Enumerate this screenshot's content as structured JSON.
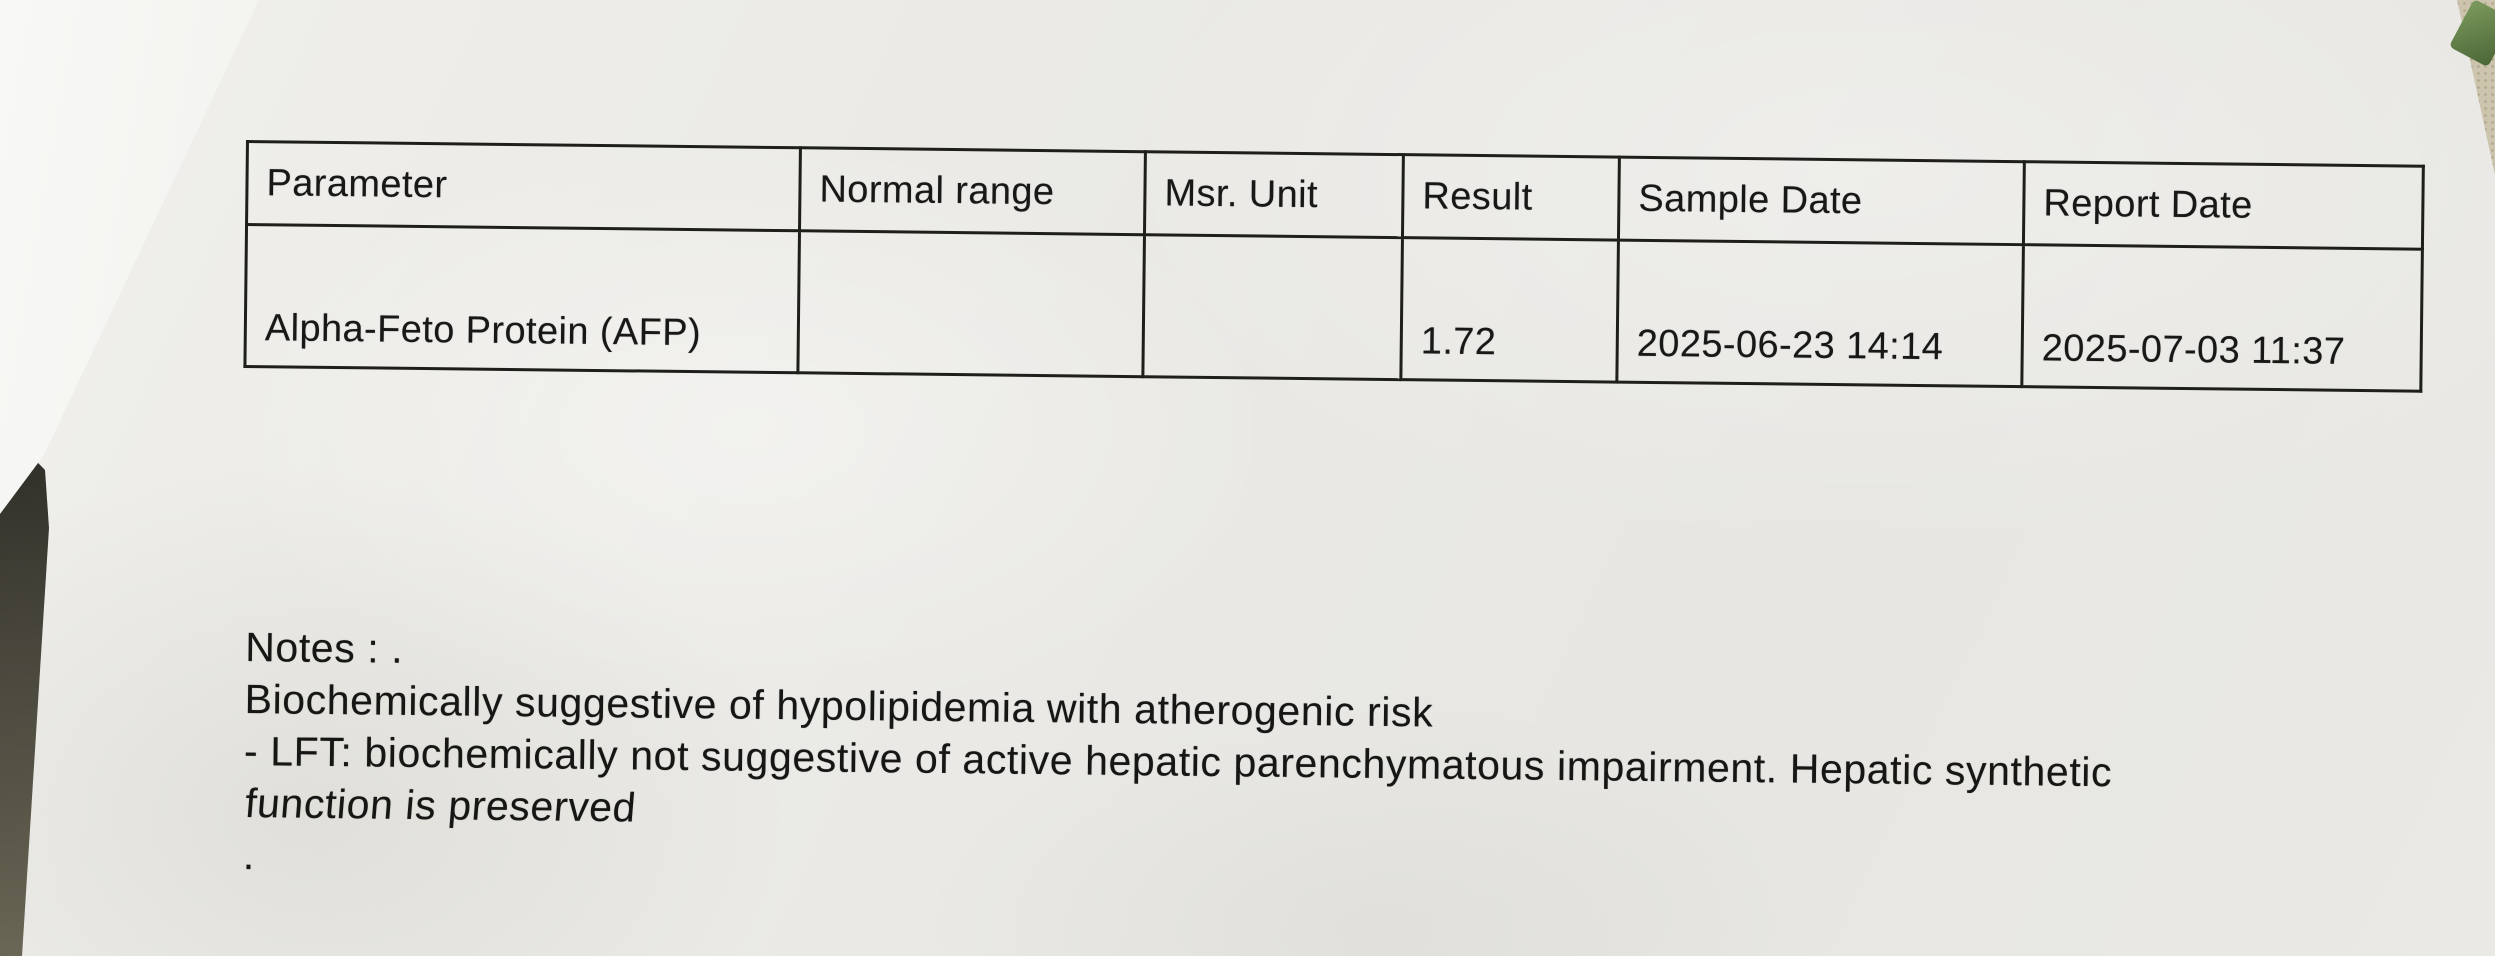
{
  "document": {
    "type_label": "lab-report-photo",
    "table": {
      "headers": [
        "Parameter",
        "Normal range",
        "Msr. Unit",
        "Result",
        "Sample Date",
        "Report Date"
      ],
      "rows": [
        {
          "cells": [
            "Alpha-Feto Protein (AFP)",
            "",
            "",
            "1.72",
            "2025-06-23 14:14",
            "2025-07-03 11:37"
          ]
        }
      ]
    },
    "notes": {
      "lines": [
        "Notes : .",
        "Biochemically suggestive of hypolipidemia with atherogenic risk",
        "- LFT: biochemically not suggestive of active hepatic parenchymatous impairment. Hepatic synthetic",
        "function is preserved",
        "."
      ]
    }
  },
  "colors": {
    "paper": "#ebeae6",
    "overlapping_sheet": "#f6f6f3",
    "ink": "#181816",
    "table_border": "#1e1e1b",
    "surface_dark": "#47453b",
    "fabric_beige": "#cdc4ad",
    "object_green": "#5e7b46"
  }
}
